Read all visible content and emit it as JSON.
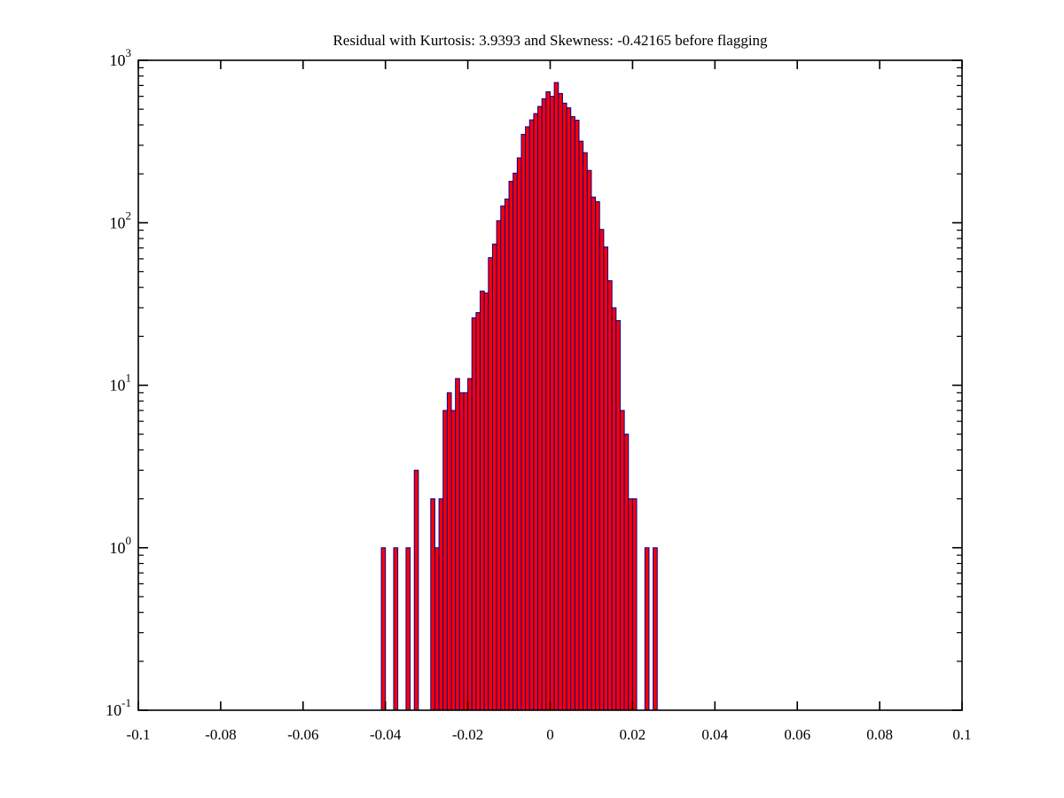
{
  "figure": {
    "background_color": "#ffffff",
    "axis_color": "#000000"
  },
  "chart_data": {
    "type": "bar",
    "subtype": "log-histogram",
    "title": "Residual with Kurtosis: 3.9393 and Skewness: -0.42165 before flagging",
    "xlabel": "",
    "ylabel": "",
    "grid": false,
    "legend": null,
    "xlim": [
      -0.1,
      0.1
    ],
    "x_ticks": [
      -0.1,
      -0.08,
      -0.06,
      -0.04,
      -0.02,
      0,
      0.02,
      0.04,
      0.06,
      0.08,
      0.1
    ],
    "x_tick_labels": [
      "-0.1",
      "-0.08",
      "-0.06",
      "-0.04",
      "-0.02",
      "0",
      "0.02",
      "0.04",
      "0.06",
      "0.08",
      "0.1"
    ],
    "y_scale": "log",
    "y_tick_base": "10",
    "y_tick_exponents": [
      -1,
      0,
      1,
      2,
      3
    ],
    "ylim_exponents": [
      -1,
      3
    ],
    "bin_width": 0.001,
    "bin_centers": [
      -0.0405,
      -0.0395,
      -0.0385,
      -0.0375,
      -0.0365,
      -0.0355,
      -0.0345,
      -0.0335,
      -0.0325,
      -0.0315,
      -0.0305,
      -0.0295,
      -0.0285,
      -0.0275,
      -0.0265,
      -0.0255,
      -0.0245,
      -0.0235,
      -0.0225,
      -0.0215,
      -0.0205,
      -0.0195,
      -0.0185,
      -0.0175,
      -0.0165,
      -0.0155,
      -0.0145,
      -0.0135,
      -0.0125,
      -0.0115,
      -0.0105,
      -0.0095,
      -0.0085,
      -0.0075,
      -0.0065,
      -0.0055,
      -0.0045,
      -0.0035,
      -0.0025,
      -0.0015,
      -0.0005,
      0.0005,
      0.0015,
      0.0025,
      0.0035,
      0.0045,
      0.0055,
      0.0065,
      0.0075,
      0.0085,
      0.0095,
      0.0105,
      0.0115,
      0.0125,
      0.0135,
      0.0145,
      0.0155,
      0.0165,
      0.0175,
      0.0185,
      0.0195,
      0.0205,
      0.0215,
      0.0225,
      0.0235,
      0.0245,
      0.0255,
      0.0265
    ],
    "counts": [
      1,
      0,
      0,
      1,
      0,
      0,
      1,
      0,
      3,
      0,
      0,
      0,
      2,
      1,
      2,
      7,
      9,
      7,
      11,
      9,
      9,
      11,
      26,
      28,
      38,
      37,
      61,
      74,
      103,
      127,
      140,
      180,
      202,
      251,
      350,
      390,
      430,
      470,
      520,
      580,
      640,
      600,
      730,
      625,
      545,
      510,
      450,
      428,
      318,
      270,
      210,
      144,
      135,
      91,
      71,
      44,
      30,
      25,
      7,
      5,
      2,
      2,
      0,
      0,
      1,
      0,
      1,
      0
    ],
    "bar_fill": "#fa0000",
    "bar_edge": "#000099"
  }
}
